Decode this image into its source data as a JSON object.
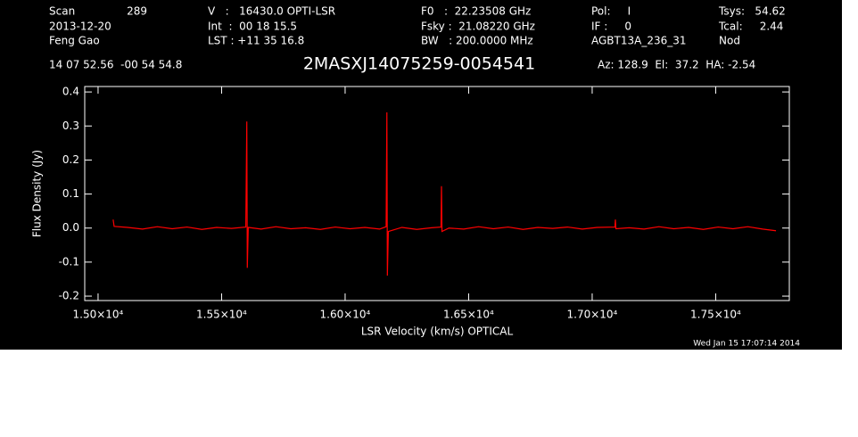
{
  "chart_data": {
    "type": "line",
    "title": "2MASXJ14075259-0054541",
    "header": [
      [
        "Scan",
        "2013-12-20",
        "Feng Gao"
      ],
      [
        "289"
      ],
      [
        "V   :   16430.0 OPTI-LSR",
        "Int  :  00 18 15.5",
        "LST : +11 35 16.8"
      ],
      [
        "F0   :  22.23508 GHz",
        "Fsky :  21.08220 GHz",
        "BW   : 200.0000 MHz"
      ],
      [
        "Pol:     I",
        "IF :     0",
        "AGBT13A_236_31"
      ],
      [
        "Tsys:   54.62",
        "Tcal:     2.44",
        "Nod"
      ]
    ],
    "position": "14 07 52.56  -00 54 54.8",
    "pointing": "Az: 128.9  El:  37.2  HA: -2.54",
    "x_label": "LSR Velocity (km/s) OPTICAL",
    "y_label": "Flux Density (Jy)",
    "timestamp": "Wed Jan 15 17:07:14 2014",
    "x": [
      15061,
      15065,
      15120,
      15180,
      15240,
      15300,
      15360,
      15420,
      15480,
      15540,
      15598,
      15602,
      15604,
      15608,
      15660,
      15720,
      15780,
      15840,
      15900,
      15960,
      16020,
      16080,
      16140,
      16166,
      16169,
      16171,
      16175,
      16230,
      16290,
      16350,
      16388,
      16390,
      16392,
      16420,
      16480,
      16540,
      16600,
      16660,
      16720,
      16780,
      16840,
      16900,
      16960,
      17020,
      17092,
      17094,
      17096,
      17150,
      17210,
      17270,
      17330,
      17390,
      17450,
      17510,
      17570,
      17630,
      17690,
      17744
    ],
    "series": [
      {
        "color": "#ff0000",
        "values": [
          0.025,
          0.005,
          0.002,
          -0.003,
          0.004,
          -0.002,
          0.003,
          -0.004,
          0.002,
          -0.001,
          0.003,
          0.313,
          -0.117,
          0.002,
          -0.003,
          0.004,
          -0.002,
          0.001,
          -0.004,
          0.003,
          -0.002,
          0.002,
          -0.003,
          0.004,
          0.34,
          -0.14,
          -0.01,
          0.002,
          -0.004,
          0.001,
          0.003,
          0.123,
          -0.01,
          0.0,
          -0.003,
          0.004,
          -0.002,
          0.003,
          -0.004,
          0.002,
          -0.001,
          0.003,
          -0.003,
          0.002,
          0.003,
          0.025,
          -0.002,
          0.001,
          -0.003,
          0.004,
          -0.002,
          0.002,
          -0.004,
          0.003,
          -0.002,
          0.004,
          -0.003,
          -0.008
        ]
      }
    ],
    "xlim": [
      14946,
      17798
    ],
    "xticks": [
      {
        "value": 15000,
        "label": "1.50×10⁴"
      },
      {
        "value": 15500,
        "label": "1.55×10⁴"
      },
      {
        "value": 16000,
        "label": "1.60×10⁴"
      },
      {
        "value": 16500,
        "label": "1.65×10⁴"
      },
      {
        "value": 17000,
        "label": "1.70×10⁴"
      },
      {
        "value": 17500,
        "label": "1.75×10⁴"
      }
    ],
    "ylim": [
      -0.213,
      0.416
    ],
    "yticks": [
      0.4,
      0.3,
      0.2,
      0.1,
      {
        "value": 0,
        "label": "0.0"
      },
      -0.1,
      -0.2
    ]
  }
}
